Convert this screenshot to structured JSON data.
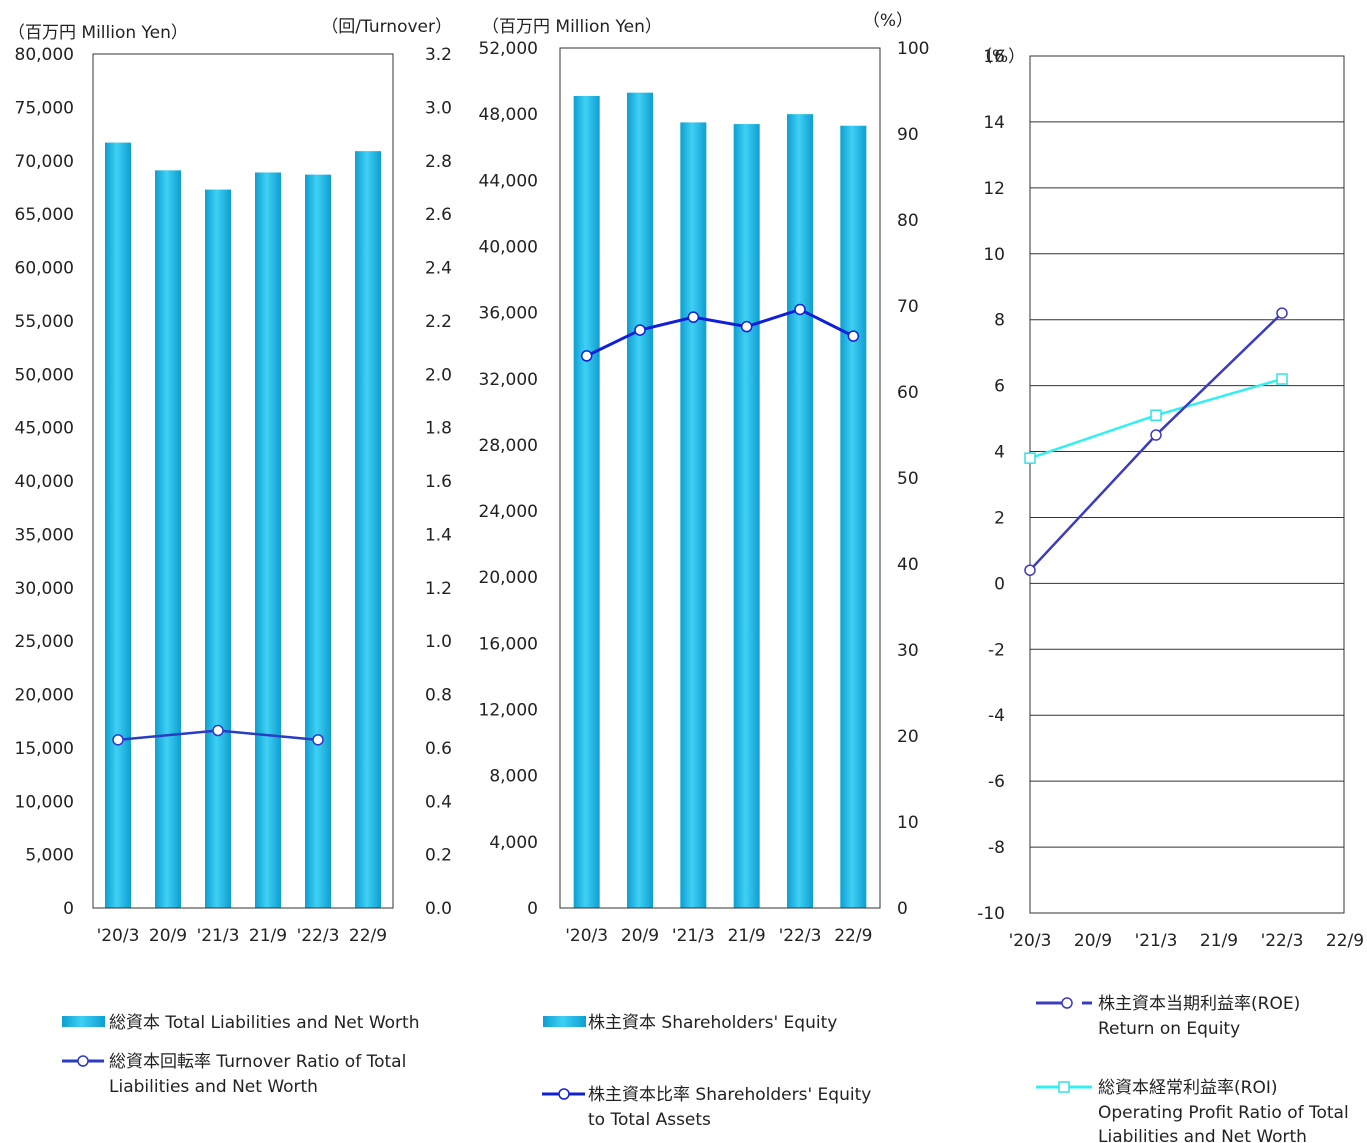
{
  "colors": {
    "bar": "#1ab4e0",
    "bar_light": "#4fd4f6",
    "turnover_line": "#2a3bc4",
    "equity_ratio_line": "#1020d8",
    "roe_line": "#3b3bbf",
    "roi_line": "#33f0f0",
    "axis": "#333333",
    "grid": "#333333"
  },
  "chart_data": [
    {
      "type": "bar",
      "categories": [
        "'20/3",
        "20/9",
        "'21/3",
        "21/9",
        "'22/3",
        "22/9"
      ],
      "y_unit_label": "（百万円 Million Yen）",
      "y2_unit_label": "（回/Turnover）",
      "ylim": [
        0,
        80000
      ],
      "y_ticks": [
        "0",
        "5,000",
        "10,000",
        "15,000",
        "20,000",
        "25,000",
        "30,000",
        "35,000",
        "40,000",
        "45,000",
        "50,000",
        "55,000",
        "60,000",
        "65,000",
        "70,000",
        "75,000",
        "80,000"
      ],
      "y2lim": [
        0.0,
        3.2
      ],
      "y2_ticks": [
        "0.0",
        "0.2",
        "0.4",
        "0.6",
        "0.8",
        "1.0",
        "1.2",
        "1.4",
        "1.6",
        "1.8",
        "2.0",
        "2.2",
        "2.4",
        "2.6",
        "2.8",
        "3.0",
        "3.2"
      ],
      "grid": false,
      "legend": "bottom",
      "series": [
        {
          "name": "総資本 Total Liabilities and Net Worth",
          "type": "bar",
          "axis": "left",
          "values": [
            71700,
            69100,
            67300,
            68900,
            68700,
            70900
          ]
        },
        {
          "name": "総資本回転率 Turnover Ratio of Total Liabilities and Net Worth",
          "type": "line",
          "axis": "right",
          "values": [
            0.63,
            null,
            0.665,
            null,
            0.63,
            null
          ]
        }
      ]
    },
    {
      "type": "bar",
      "categories": [
        "'20/3",
        "20/9",
        "'21/3",
        "21/9",
        "'22/3",
        "22/9"
      ],
      "y_unit_label": "（百万円 Million Yen）",
      "y2_unit_label": "（%）",
      "ylim": [
        0,
        52000
      ],
      "y_ticks": [
        "0",
        "4,000",
        "8,000",
        "12,000",
        "16,000",
        "20,000",
        "24,000",
        "28,000",
        "32,000",
        "36,000",
        "40,000",
        "44,000",
        "48,000",
        "52,000"
      ],
      "y2lim": [
        0,
        100
      ],
      "y2_ticks": [
        "0",
        "10",
        "20",
        "30",
        "40",
        "50",
        "60",
        "70",
        "80",
        "90",
        "100"
      ],
      "grid": false,
      "legend": "bottom",
      "series": [
        {
          "name": "株主資本 Shareholders' Equity",
          "type": "bar",
          "axis": "left",
          "values": [
            49100,
            49300,
            47500,
            47400,
            48000,
            47300
          ]
        },
        {
          "name": "株主資本比率 Shareholders' Equity to Total Assets",
          "type": "line",
          "axis": "right",
          "values": [
            64.2,
            67.2,
            68.7,
            67.6,
            69.6,
            66.5
          ]
        }
      ]
    },
    {
      "type": "line",
      "categories": [
        "'20/3",
        "20/9",
        "'21/3",
        "21/9",
        "'22/3",
        "22/9"
      ],
      "y_unit_label": "（%）",
      "ylim": [
        -10,
        16
      ],
      "y_ticks": [
        "-10",
        "-8",
        "-6",
        "-4",
        "-2",
        "0",
        "2",
        "4",
        "6",
        "8",
        "10",
        "12",
        "14",
        "16"
      ],
      "grid": true,
      "legend": "bottom",
      "series": [
        {
          "name": "株主資本当期利益率(ROE) Return on Equity",
          "label_lines": [
            "株主資本当期利益率(ROE)",
            "Return on Equity"
          ],
          "marker": "circle",
          "points": [
            [
              "'20/3",
              0.4
            ],
            [
              "'21/3",
              4.5
            ],
            [
              "'22/3",
              8.2
            ]
          ]
        },
        {
          "name": "総資本経常利益率(ROI) Operating Profit Ratio of Total Liabilities and Net Worth",
          "label_lines": [
            "総資本経常利益率(ROI)",
            "Operating Profit Ratio of Total",
            "Liabilities and Net Worth"
          ],
          "marker": "square",
          "points": [
            [
              "'20/3",
              3.8
            ],
            [
              "'21/3",
              5.1
            ],
            [
              "'22/3",
              6.2
            ]
          ]
        }
      ]
    }
  ],
  "legends": {
    "c1_bar": "総資本 Total Liabilities and Net Worth",
    "c1_line": [
      "総資本回転率 Turnover Ratio of Total",
      "Liabilities and Net Worth"
    ],
    "c2_bar": "株主資本 Shareholders' Equity",
    "c2_line": [
      "株主資本比率 Shareholders' Equity",
      "to Total Assets"
    ]
  }
}
